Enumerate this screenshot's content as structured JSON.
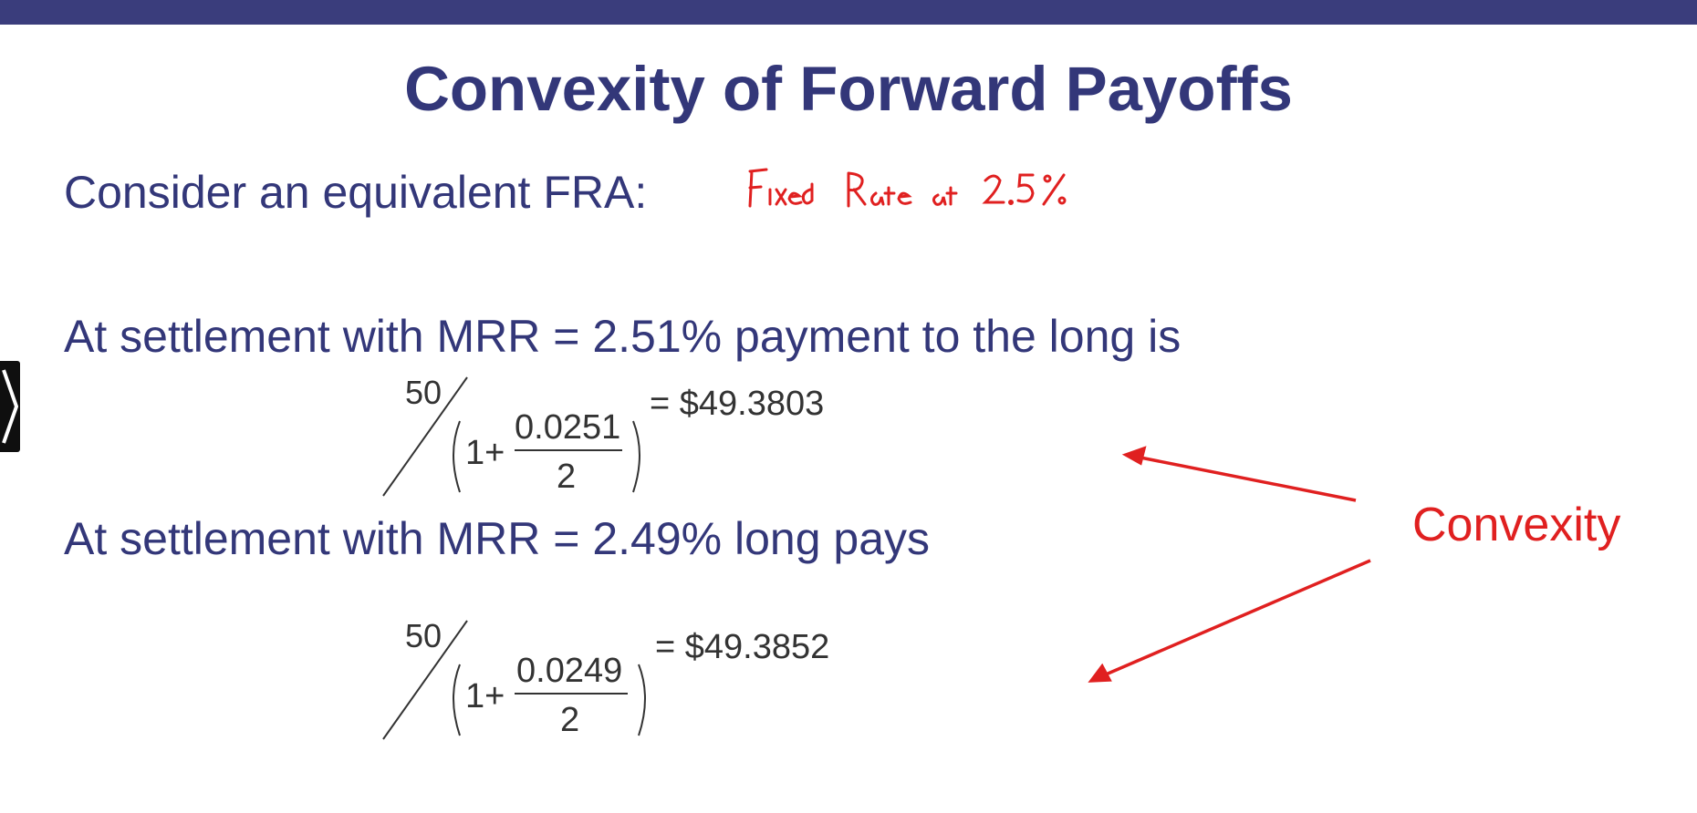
{
  "slide": {
    "title": "Convexity of Forward Payoffs",
    "line1": "Consider an equivalent FRA:",
    "annotation": "Fixed Rate at 2.5%",
    "line2": "At settlement with MRR = 2.51% payment to the long is",
    "line3": "At settlement with MRR = 2.49% long pays",
    "convexity_label": "Convexity"
  },
  "formula1": {
    "numerator": "50",
    "one_plus": "1+",
    "rate": "0.0251",
    "denominator": "2",
    "result": "= $49.3803"
  },
  "formula2": {
    "numerator": "50",
    "one_plus": "1+",
    "rate": "0.0249",
    "denominator": "2",
    "result": "= $49.3852"
  },
  "colors": {
    "header_bar": "#3a3d7c",
    "text": "#333779",
    "annotation": "#e02020"
  },
  "icons": {
    "side_control": "chevron-right-icon"
  }
}
